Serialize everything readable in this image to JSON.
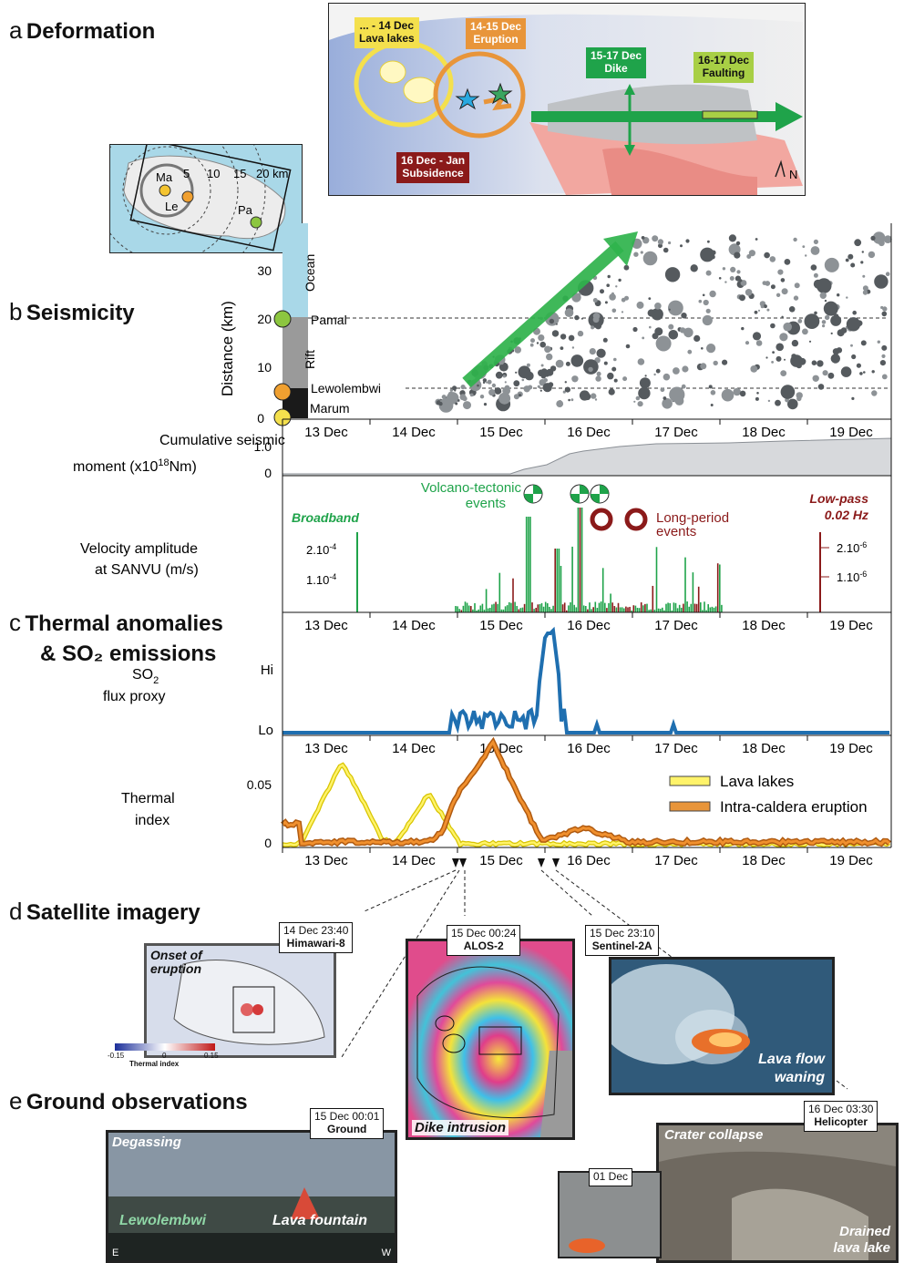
{
  "panels": {
    "a": {
      "letter": "a",
      "title": "Deformation"
    },
    "b": {
      "letter": "b",
      "title": "Seismicity"
    },
    "c": {
      "letter": "c",
      "title_line1": "Thermal anomalies",
      "title_line2": "& SO₂ emissions"
    },
    "d": {
      "letter": "d",
      "title": "Satellite imagery"
    },
    "e": {
      "letter": "e",
      "title": "Ground observations"
    }
  },
  "map_a": {
    "labels": {
      "lava_lakes": "... - 14 Dec\nLava lakes",
      "eruption": "14-15 Dec\nEruption",
      "dike": "15-17 Dec\nDike",
      "faulting": "16-17 Dec\nFaulting",
      "subsidence": "16 Dec - Jan\nSubsidence",
      "north": "N"
    },
    "colors": {
      "lava_lakes": "#f4e04d",
      "eruption": "#e8953a",
      "dike": "#1fa34a",
      "faulting": "#a8cf45",
      "subsidence": "#8b1a1a"
    }
  },
  "inset_map": {
    "rings": [
      "5",
      "10",
      "15",
      "20 km"
    ],
    "sites": [
      "Ma",
      "Le",
      "Pa"
    ]
  },
  "time_axis": {
    "ticks": [
      "13 Dec",
      "14 Dec",
      "15 Dec",
      "16 Dec",
      "17 Dec",
      "18 Dec",
      "19 Dec"
    ]
  },
  "seismicity": {
    "ylabel": "Distance (km)",
    "yticks": [
      "0",
      "10",
      "20",
      "30"
    ],
    "zones": [
      "Ocean",
      "Rift",
      "Marum"
    ],
    "lines": [
      "Pamal",
      "Lewolembwi"
    ]
  },
  "moment": {
    "ylabel_line1": "Cumulative seismic",
    "ylabel_line2": "moment (x10",
    "ylabel_sup": "18",
    "ylabel_end": "Nm)",
    "yticks": [
      "0",
      "1.0"
    ]
  },
  "velocity": {
    "ylabel_line1": "Velocity amplitude",
    "ylabel_line2": "at SANVU (m/s)",
    "broadband": "Broadband",
    "lowpass_line1": "Low-pass",
    "lowpass_line2": "0.02 Hz",
    "left_ticks": [
      "2.10",
      "1.10"
    ],
    "left_exp": "-4",
    "right_ticks": [
      "2.10",
      "1.10"
    ],
    "right_exp": "-6",
    "vt_label": "Volcano-tectonic\nevents",
    "lp_label": "Long-period\nevents"
  },
  "so2": {
    "ylabel_line1": "SO",
    "ylabel_sub": "2",
    "ylabel_line2": "flux proxy",
    "hi": "Hi",
    "lo": "Lo"
  },
  "thermal": {
    "ylabel_line1": "Thermal",
    "ylabel_line2": "index",
    "yticks": [
      "0",
      "0.05"
    ],
    "legend": [
      "Lava lakes",
      "Intra-caldera eruption"
    ]
  },
  "so2_ticks_15": "15",
  "satellite": {
    "himawari": {
      "time": "14 Dec 23:40",
      "name": "Himawari-8",
      "caption": "Onset of\neruption"
    },
    "colorbar": {
      "min": "-0.15",
      "mid": "0",
      "max": "0.15",
      "label": "Thermal index"
    },
    "alos": {
      "time": "15 Dec 00:24",
      "name": "ALOS-2",
      "caption": "Dike intrusion"
    },
    "sentinel": {
      "time": "15 Dec 23:10",
      "name": "Sentinel-2A",
      "caption": "Lava flow\nwaning"
    }
  },
  "ground": {
    "ground_photo": {
      "time": "15 Dec 00:01",
      "name": "Ground",
      "caption_tl": "Degassing",
      "caption_bl": "Lewolembwi",
      "caption_br": "Lava fountain",
      "e": "E",
      "w": "W"
    },
    "helicopter": {
      "time": "16 Dec 03:30",
      "name": "Helicopter",
      "caption_tl": "Crater collapse",
      "caption_br": "Drained\nlava lake",
      "inset": "01 Dec"
    }
  }
}
